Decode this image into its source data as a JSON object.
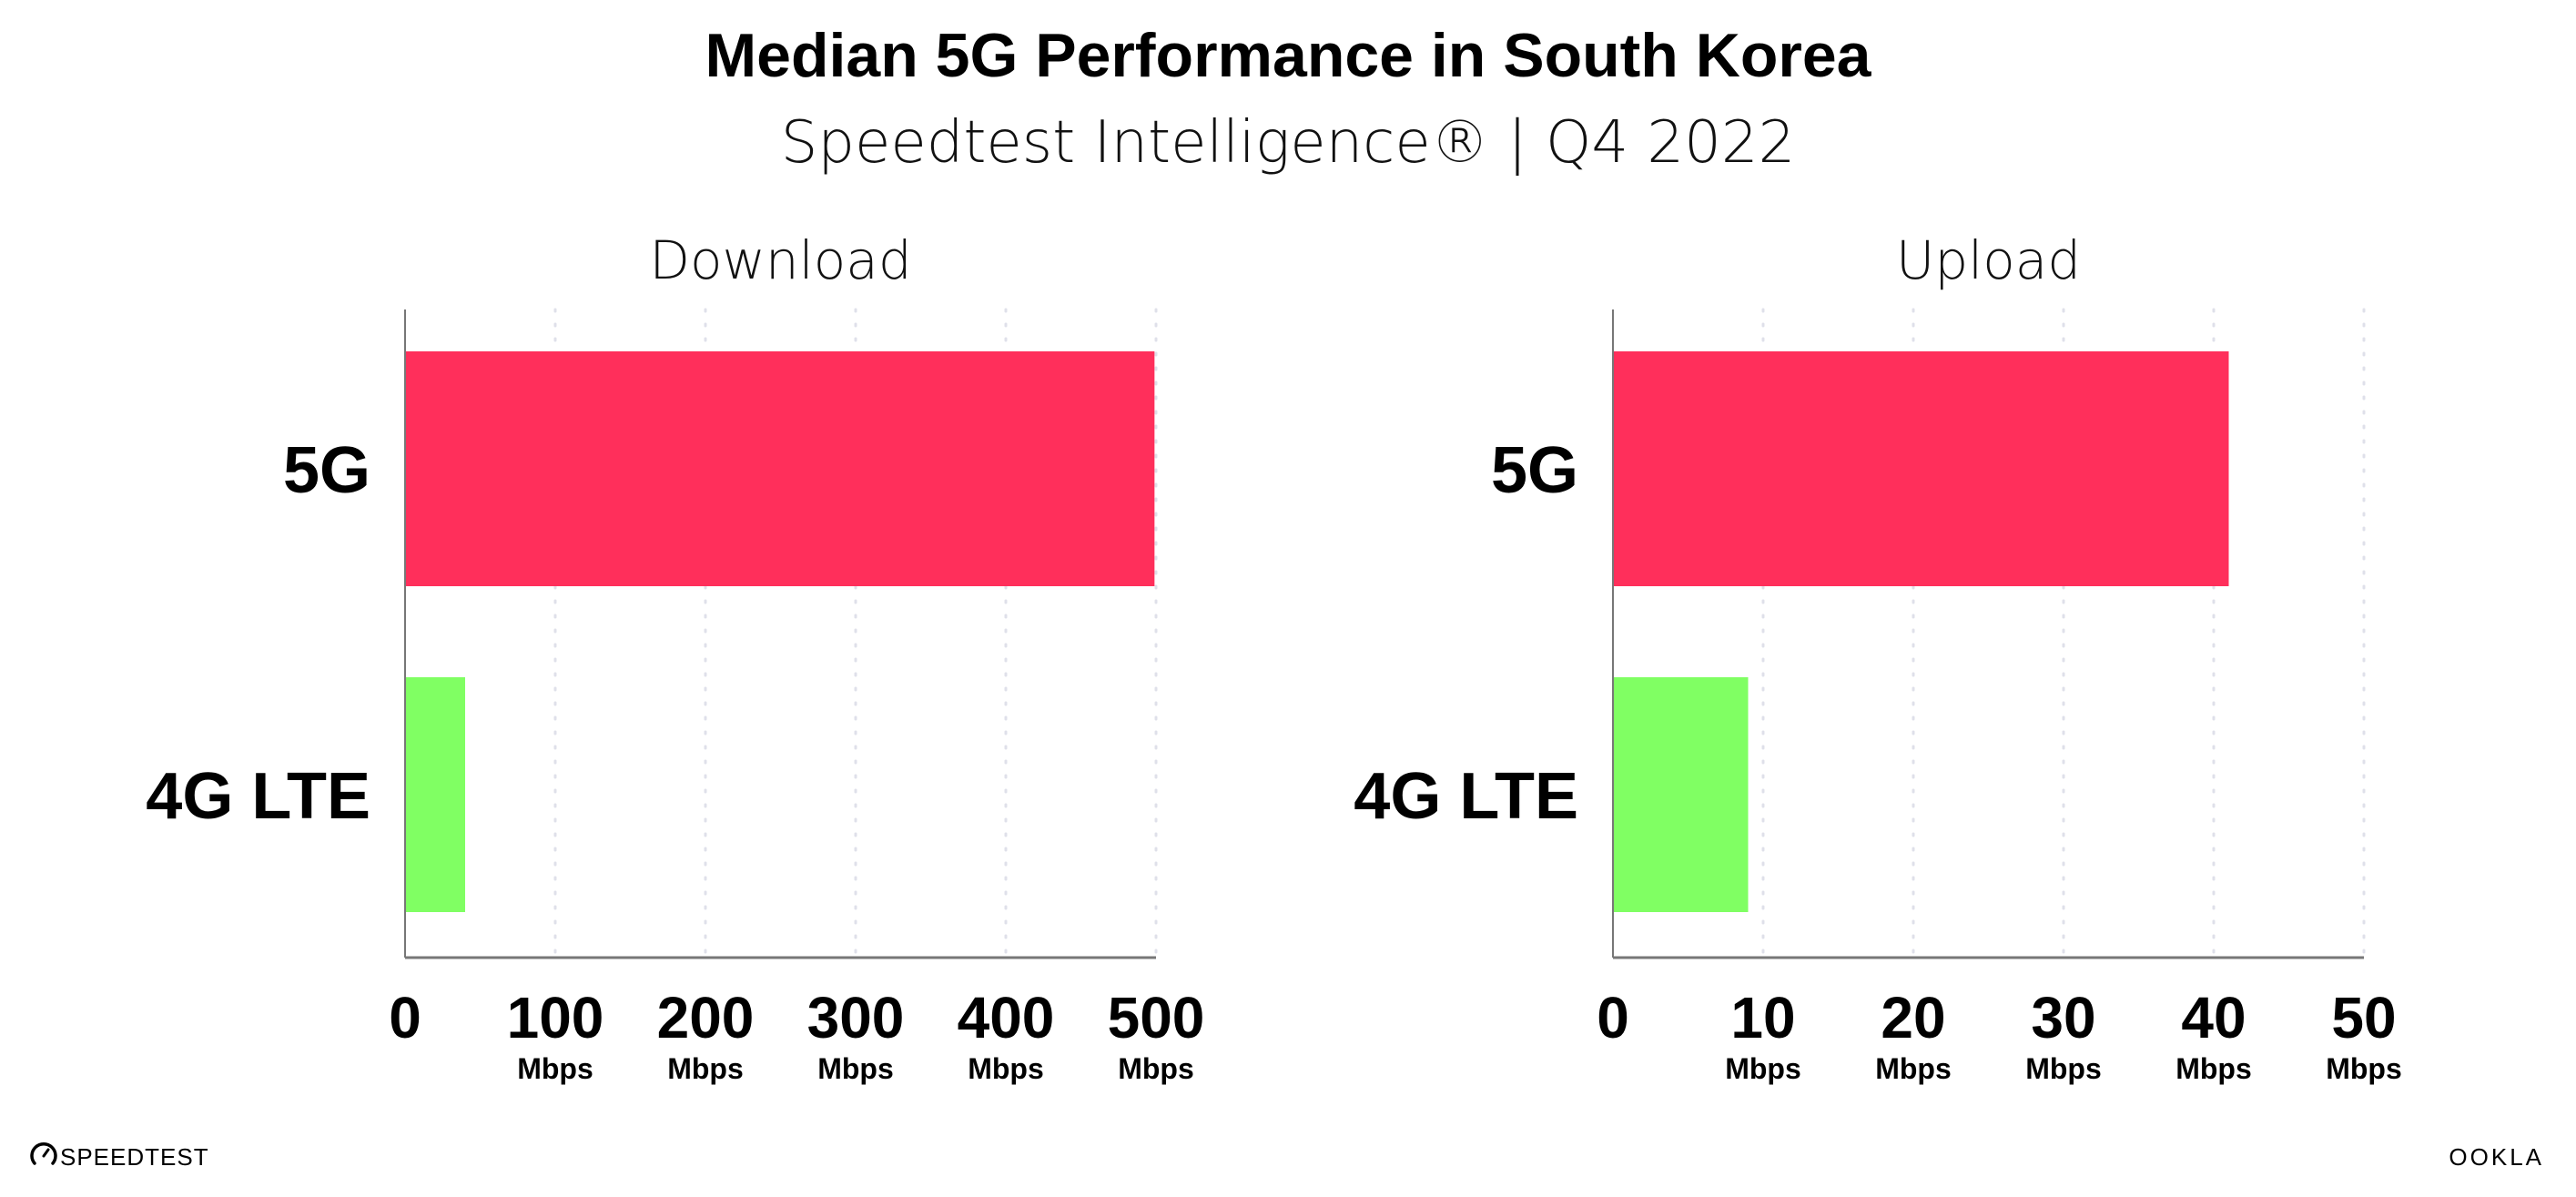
{
  "chart_data": {
    "title": "Median 5G Performance in South Korea",
    "subtitle": "Speedtest Intelligence® | Q4 2022",
    "type": "bar",
    "orientation": "horizontal",
    "grid": true,
    "colors": {
      "5G": "#ff2f5b",
      "4G LTE": "#80ff63"
    },
    "panels": [
      {
        "title": "Download",
        "categories": [
          "5G",
          "4G LTE"
        ],
        "values": [
          499,
          40
        ],
        "xlim": [
          0,
          500
        ],
        "ticks": [
          "0",
          "100",
          "200",
          "300",
          "400",
          "500"
        ],
        "tick_values": [
          0,
          100,
          200,
          300,
          400,
          500
        ],
        "unit": "Mbps"
      },
      {
        "title": "Upload",
        "categories": [
          "5G",
          "4G LTE"
        ],
        "values": [
          41,
          9
        ],
        "xlim": [
          0,
          50
        ],
        "ticks": [
          "0",
          "10",
          "20",
          "30",
          "40",
          "50"
        ],
        "tick_values": [
          0,
          10,
          20,
          30,
          40,
          50
        ],
        "unit": "Mbps"
      }
    ]
  },
  "footer": {
    "left_logo": "SPEEDTEST",
    "right_logo": "OOKLA"
  }
}
